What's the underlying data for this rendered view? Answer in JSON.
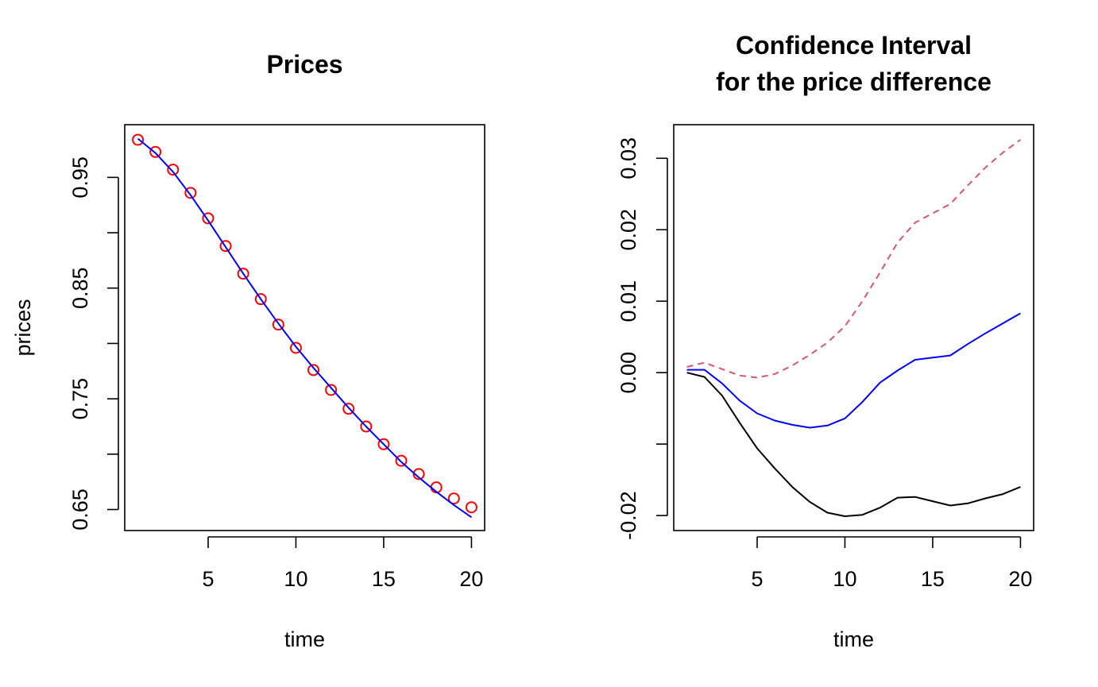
{
  "chart_data": [
    {
      "type": "line",
      "title": "Prices",
      "xlabel": "time",
      "ylabel": "prices",
      "xlim": [
        0.25,
        20.75
      ],
      "ylim": [
        0.631,
        0.9976
      ],
      "xticks": [
        5,
        10,
        15,
        20
      ],
      "xtick_labels": [
        "5",
        "10",
        "15",
        "20"
      ],
      "yticks": [
        0.65,
        0.7,
        0.75,
        0.8,
        0.85,
        0.9,
        0.95
      ],
      "ytick_labels": [
        "0.65",
        "",
        "0.75",
        "",
        "0.85",
        "",
        "0.95"
      ],
      "grid": false,
      "series": [
        {
          "style": "points",
          "color": "#ff0000",
          "marker": "open-circle",
          "x": [
            1,
            2,
            3,
            4,
            5,
            6,
            7,
            8,
            9,
            10,
            11,
            12,
            13,
            14,
            15,
            16,
            17,
            18,
            19,
            20
          ],
          "values": [
            0.984,
            0.973,
            0.957,
            0.936,
            0.913,
            0.888,
            0.863,
            0.84,
            0.817,
            0.796,
            0.776,
            0.758,
            0.741,
            0.725,
            0.709,
            0.694,
            0.682,
            0.67,
            0.66,
            0.652
          ]
        },
        {
          "style": "line",
          "color": "#0000ff",
          "x": [
            1,
            2,
            3,
            4,
            5,
            6,
            7,
            8,
            9,
            10,
            11,
            12,
            13,
            14,
            15,
            16,
            17,
            18,
            19,
            20
          ],
          "values": [
            0.985,
            0.972,
            0.955,
            0.934,
            0.911,
            0.887,
            0.863,
            0.84,
            0.818,
            0.797,
            0.778,
            0.76,
            0.742,
            0.725,
            0.709,
            0.693,
            0.679,
            0.666,
            0.654,
            0.643
          ]
        }
      ]
    },
    {
      "type": "line",
      "title": "Confidence Interval\nfor the price difference",
      "title_lines": [
        "Confidence Interval",
        "for the price difference"
      ],
      "xlabel": "time",
      "ylabel": "",
      "xlim": [
        0.25,
        20.75
      ],
      "ylim": [
        -0.0221,
        0.0347
      ],
      "xticks": [
        5,
        10,
        15,
        20
      ],
      "xtick_labels": [
        "5",
        "10",
        "15",
        "20"
      ],
      "yticks": [
        -0.02,
        -0.01,
        0.0,
        0.01,
        0.02,
        0.03
      ],
      "ytick_labels": [
        "-0.02",
        "",
        "0.00",
        "0.01",
        "0.02",
        "0.03"
      ],
      "grid": false,
      "series": [
        {
          "style": "dashed",
          "color": "#df536b",
          "x": [
            1,
            2,
            3,
            4,
            5,
            6,
            7,
            8,
            9,
            10,
            11,
            12,
            13,
            14,
            15,
            16,
            17,
            18,
            19,
            20
          ],
          "values": [
            0.0008,
            0.0014,
            0.0005,
            -0.0004,
            -0.0007,
            -0.0002,
            0.001,
            0.0025,
            0.0042,
            0.0065,
            0.01,
            0.014,
            0.0182,
            0.021,
            0.0223,
            0.0236,
            0.0262,
            0.0287,
            0.0308,
            0.0326
          ]
        },
        {
          "style": "line",
          "color": "#0000ff",
          "x": [
            1,
            2,
            3,
            4,
            5,
            6,
            7,
            8,
            9,
            10,
            11,
            12,
            13,
            14,
            15,
            16,
            17,
            18,
            19,
            20
          ],
          "values": [
            0.0004,
            0.0004,
            -0.0015,
            -0.0039,
            -0.0057,
            -0.0067,
            -0.0073,
            -0.0077,
            -0.0074,
            -0.0064,
            -0.0041,
            -0.0014,
            0.0003,
            0.0018,
            0.0021,
            0.0024,
            0.004,
            0.0055,
            0.0069,
            0.0083
          ]
        },
        {
          "style": "line",
          "color": "#000000",
          "x": [
            1,
            2,
            3,
            4,
            5,
            6,
            7,
            8,
            9,
            10,
            11,
            12,
            13,
            14,
            15,
            16,
            17,
            18,
            19,
            20
          ],
          "values": [
            0.0,
            -0.0006,
            -0.0032,
            -0.007,
            -0.0106,
            -0.0134,
            -0.016,
            -0.0181,
            -0.0196,
            -0.0201,
            -0.0199,
            -0.0189,
            -0.0175,
            -0.0174,
            -0.018,
            -0.0186,
            -0.0183,
            -0.0176,
            -0.017,
            -0.016
          ]
        }
      ]
    }
  ]
}
